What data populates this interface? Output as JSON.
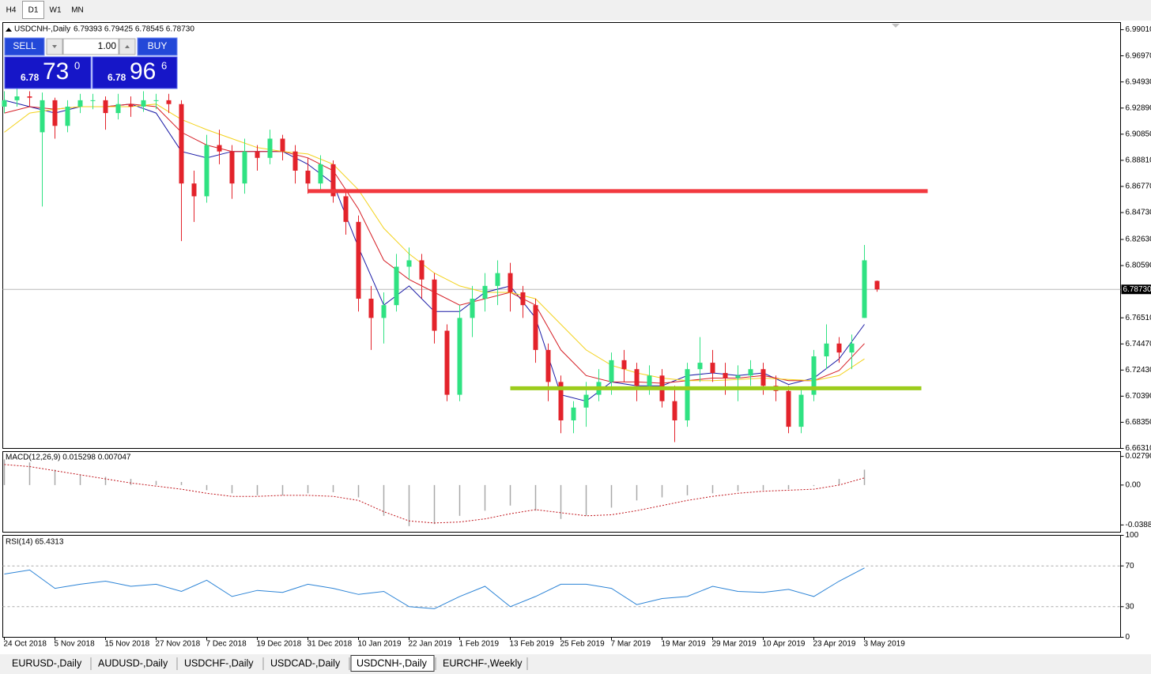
{
  "top_tabs": [
    "H4",
    "D1",
    "W1",
    "MN"
  ],
  "active_top_tab": 1,
  "trade_panel": {
    "sell": "SELL",
    "buy": "BUY",
    "lot": "1.00",
    "sell_big": "6.78",
    "sell_pips": "73",
    "sell_frac": "0",
    "buy_big": "6.78",
    "buy_pips": "96",
    "buy_frac": "6"
  },
  "chart_data": [
    {
      "type": "candlestick",
      "title": "USDCNH-,Daily",
      "ohlc": "6.79393 6.79425 6.78545 6.78730",
      "up_color": "#2fe282",
      "down_color": "#e3232b",
      "xlim": [
        -0.25,
        176.5
      ],
      "xticks": [
        {
          "value": 0,
          "label": "24 Oct 2018"
        },
        {
          "value": 8,
          "label": "5 Nov 2018"
        },
        {
          "value": 16,
          "label": "15 Nov 2018"
        },
        {
          "value": 24,
          "label": "27 Nov 2018"
        },
        {
          "value": 32,
          "label": "7 Dec 2018"
        },
        {
          "value": 40,
          "label": "19 Dec 2018"
        },
        {
          "value": 48,
          "label": "31 Dec 2018"
        },
        {
          "value": 56,
          "label": "10 Jan 2019"
        },
        {
          "value": 64,
          "label": "22 Jan 2019"
        },
        {
          "value": 72,
          "label": "1 Feb 2019"
        },
        {
          "value": 80,
          "label": "13 Feb 2019"
        },
        {
          "value": 88,
          "label": "25 Feb 2019"
        },
        {
          "value": 96,
          "label": "7 Mar 2019"
        },
        {
          "value": 104,
          "label": "19 Mar 2019"
        },
        {
          "value": 112,
          "label": "29 Mar 2019"
        },
        {
          "value": 120,
          "label": "10 Apr 2019"
        },
        {
          "value": 128,
          "label": "23 Apr 2019"
        },
        {
          "value": 136,
          "label": "3 May 2019"
        }
      ],
      "ylim": [
        6.6631,
        6.9957
      ],
      "yticks": [
        {
          "value": 6.9901,
          "label": "6.99010"
        },
        {
          "value": 6.9697,
          "label": "6.96970"
        },
        {
          "value": 6.9493,
          "label": "6.94930"
        },
        {
          "value": 6.9289,
          "label": "6.92890"
        },
        {
          "value": 6.9085,
          "label": "6.90850"
        },
        {
          "value": 6.8881,
          "label": "6.88810"
        },
        {
          "value": 6.8677,
          "label": "6.86770"
        },
        {
          "value": 6.8473,
          "label": "6.84730"
        },
        {
          "value": 6.8263,
          "label": "6.82630"
        },
        {
          "value": 6.8059,
          "label": "6.80590"
        },
        {
          "value": 6.7651,
          "label": "6.76510"
        },
        {
          "value": 6.7447,
          "label": "6.74470"
        },
        {
          "value": 6.7243,
          "label": "6.72430"
        },
        {
          "value": 6.7039,
          "label": "6.70390"
        },
        {
          "value": 6.6835,
          "label": "6.68350"
        },
        {
          "value": 6.6631,
          "label": "6.66310"
        }
      ],
      "bid": {
        "value": 6.7873,
        "label": "6.78730"
      },
      "x": [
        0,
        2,
        4,
        6,
        8,
        10,
        12,
        14,
        16,
        18,
        20,
        22,
        24,
        26,
        28,
        30,
        32,
        34,
        36,
        38,
        40,
        42,
        44,
        46,
        48,
        50,
        52,
        54,
        56,
        58,
        60,
        62,
        64,
        66,
        68,
        70,
        72,
        74,
        76,
        78,
        80,
        82,
        84,
        86,
        88,
        90,
        92,
        94,
        96,
        98,
        100,
        102,
        104,
        106,
        108,
        110,
        112,
        114,
        116,
        118,
        120,
        122,
        124,
        126,
        128,
        130,
        132,
        134,
        136,
        138
      ],
      "candles": [
        [
          6.93,
          6.942,
          6.925,
          6.935
        ],
        [
          6.935,
          6.944,
          6.93,
          6.938
        ],
        [
          6.938,
          6.942,
          6.93,
          6.937
        ],
        [
          6.91,
          6.941,
          6.852,
          6.935
        ],
        [
          6.935,
          6.937,
          6.905,
          6.915
        ],
        [
          6.915,
          6.935,
          6.91,
          6.93
        ],
        [
          6.93,
          6.94,
          6.925,
          6.935
        ],
        [
          6.935,
          6.94,
          6.928,
          6.935
        ],
        [
          6.935,
          6.938,
          6.912,
          6.925
        ],
        [
          6.925,
          6.94,
          6.92,
          6.932
        ],
        [
          6.932,
          6.938,
          6.922,
          6.93
        ],
        [
          6.93,
          6.942,
          6.926,
          6.935
        ],
        [
          6.935,
          6.94,
          6.928,
          6.935
        ],
        [
          6.935,
          6.94,
          6.925,
          6.932
        ],
        [
          6.932,
          6.935,
          6.825,
          6.87
        ],
        [
          6.87,
          6.88,
          6.84,
          6.86
        ],
        [
          6.86,
          6.908,
          6.855,
          6.9
        ],
        [
          6.9,
          6.912,
          6.885,
          6.895
        ],
        [
          6.895,
          6.9,
          6.858,
          6.87
        ],
        [
          6.87,
          6.905,
          6.862,
          6.895
        ],
        [
          6.895,
          6.9,
          6.88,
          6.89
        ],
        [
          6.89,
          6.912,
          6.885,
          6.905
        ],
        [
          6.905,
          6.908,
          6.888,
          6.895
        ],
        [
          6.895,
          6.9,
          6.87,
          6.88
        ],
        [
          6.88,
          6.89,
          6.862,
          6.87
        ],
        [
          6.87,
          6.892,
          6.865,
          6.885
        ],
        [
          6.885,
          6.888,
          6.855,
          6.86
        ],
        [
          6.86,
          6.865,
          6.83,
          6.84
        ],
        [
          6.84,
          6.845,
          6.77,
          6.78
        ],
        [
          6.78,
          6.79,
          6.74,
          6.765
        ],
        [
          6.765,
          6.785,
          6.745,
          6.775
        ],
        [
          6.775,
          6.815,
          6.77,
          6.805
        ],
        [
          6.805,
          6.82,
          6.795,
          6.81
        ],
        [
          6.81,
          6.815,
          6.78,
          6.795
        ],
        [
          6.795,
          6.8,
          6.745,
          6.755
        ],
        [
          6.755,
          6.76,
          6.7,
          6.705
        ],
        [
          6.705,
          6.775,
          6.7,
          6.765
        ],
        [
          6.765,
          6.79,
          6.75,
          6.78
        ],
        [
          6.78,
          6.8,
          6.77,
          6.79
        ],
        [
          6.79,
          6.81,
          6.775,
          6.8
        ],
        [
          6.8,
          6.808,
          6.77,
          6.785
        ],
        [
          6.785,
          6.79,
          6.765,
          6.775
        ],
        [
          6.775,
          6.78,
          6.73,
          6.74
        ],
        [
          6.74,
          6.745,
          6.7,
          6.715
        ],
        [
          6.715,
          6.72,
          6.675,
          6.685
        ],
        [
          6.685,
          6.7,
          6.675,
          6.695
        ],
        [
          6.695,
          6.715,
          6.68,
          6.705
        ],
        [
          6.705,
          6.725,
          6.7,
          6.715
        ],
        [
          6.715,
          6.738,
          6.705,
          6.732
        ],
        [
          6.732,
          6.74,
          6.715,
          6.725
        ],
        [
          6.725,
          6.73,
          6.7,
          6.712
        ],
        [
          6.712,
          6.728,
          6.705,
          6.72
        ],
        [
          6.72,
          6.725,
          6.695,
          6.7
        ],
        [
          6.7,
          6.712,
          6.668,
          6.685
        ],
        [
          6.685,
          6.73,
          6.68,
          6.725
        ],
        [
          6.725,
          6.75,
          6.715,
          6.73
        ],
        [
          6.73,
          6.74,
          6.715,
          6.722
        ],
        [
          6.722,
          6.73,
          6.705,
          6.718
        ],
        [
          6.718,
          6.728,
          6.7,
          6.72
        ],
        [
          6.72,
          6.732,
          6.712,
          6.725
        ],
        [
          6.725,
          6.73,
          6.705,
          6.712
        ],
        [
          6.712,
          6.72,
          6.7,
          6.708
        ],
        [
          6.708,
          6.712,
          6.675,
          6.68
        ],
        [
          6.68,
          6.71,
          6.675,
          6.705
        ],
        [
          6.705,
          6.74,
          6.7,
          6.735
        ],
        [
          6.735,
          6.76,
          6.725,
          6.745
        ],
        [
          6.745,
          6.75,
          6.73,
          6.738
        ],
        [
          6.738,
          6.752,
          6.725,
          6.745
        ],
        [
          6.765,
          6.822,
          6.765,
          6.81
        ],
        [
          6.79393,
          6.79425,
          6.78545,
          6.7873
        ]
      ],
      "moving_averages": [
        {
          "color": "#1a1aa6",
          "x": [
            0,
            4,
            8,
            12,
            16,
            20,
            24,
            28,
            32,
            36,
            40,
            44,
            48,
            52,
            56,
            60,
            64,
            68,
            72,
            76,
            80,
            84,
            88,
            92,
            96,
            100,
            104,
            108,
            112,
            116,
            120,
            124,
            128,
            132,
            136
          ],
          "values": [
            6.935,
            6.93,
            6.925,
            6.93,
            6.93,
            6.932,
            6.925,
            6.895,
            6.89,
            6.895,
            6.895,
            6.895,
            6.885,
            6.87,
            6.82,
            6.775,
            6.79,
            6.77,
            6.77,
            6.785,
            6.79,
            6.765,
            6.705,
            6.7,
            6.715,
            6.712,
            6.712,
            6.72,
            6.722,
            6.72,
            6.722,
            6.713,
            6.718,
            6.733,
            6.76
          ]
        },
        {
          "color": "#d61f26",
          "x": [
            0,
            4,
            8,
            12,
            16,
            20,
            24,
            28,
            32,
            36,
            40,
            44,
            48,
            52,
            56,
            60,
            64,
            68,
            72,
            76,
            80,
            84,
            88,
            92,
            96,
            100,
            104,
            108,
            112,
            116,
            120,
            124,
            128,
            132,
            136
          ],
          "values": [
            6.925,
            6.93,
            6.928,
            6.93,
            6.93,
            6.932,
            6.93,
            6.91,
            6.9,
            6.895,
            6.895,
            6.895,
            6.89,
            6.88,
            6.85,
            6.81,
            6.795,
            6.785,
            6.775,
            6.78,
            6.785,
            6.775,
            6.74,
            6.72,
            6.715,
            6.715,
            6.714,
            6.716,
            6.718,
            6.718,
            6.72,
            6.716,
            6.716,
            6.724,
            6.745
          ]
        },
        {
          "color": "#f3d21c",
          "x": [
            0,
            4,
            8,
            12,
            16,
            20,
            24,
            28,
            32,
            36,
            40,
            44,
            48,
            52,
            56,
            60,
            64,
            68,
            72,
            76,
            80,
            84,
            88,
            92,
            96,
            100,
            104,
            108,
            112,
            116,
            120,
            124,
            128,
            132,
            136
          ],
          "values": [
            6.91,
            6.925,
            6.928,
            6.93,
            6.93,
            6.93,
            6.932,
            6.92,
            6.912,
            6.905,
            6.898,
            6.895,
            6.893,
            6.885,
            6.865,
            6.835,
            6.815,
            6.8,
            6.79,
            6.785,
            6.785,
            6.78,
            6.76,
            6.74,
            6.728,
            6.722,
            6.718,
            6.716,
            6.716,
            6.717,
            6.718,
            6.717,
            6.716,
            6.72,
            6.733
          ]
        }
      ],
      "hlines": [
        {
          "value": 6.864,
          "from": 48,
          "to": 146,
          "color": "#f2393f"
        },
        {
          "value": 6.7101,
          "from": 80,
          "to": 145,
          "color": "#9ccc1c"
        }
      ]
    },
    {
      "type": "macd",
      "title": "MACD(12,26,9) 0.015298 0.007047",
      "ylim": [
        -0.0459,
        0.0326
      ],
      "yticks": [
        {
          "value": 0.0279,
          "label": "0.02790"
        },
        {
          "value": 0,
          "label": "0.00"
        },
        {
          "value": -0.03887,
          "label": "-0.03887"
        }
      ],
      "x": [
        0,
        4,
        8,
        12,
        16,
        20,
        24,
        28,
        32,
        36,
        40,
        44,
        48,
        52,
        56,
        60,
        64,
        68,
        72,
        76,
        80,
        84,
        88,
        92,
        96,
        100,
        104,
        108,
        112,
        116,
        120,
        124,
        128,
        132,
        136
      ],
      "histogram": [
        0.025,
        0.022,
        0.015,
        0.01,
        0.008,
        0.006,
        0.004,
        0.003,
        -0.005,
        -0.008,
        -0.01,
        -0.01,
        -0.008,
        -0.007,
        -0.012,
        -0.03,
        -0.04,
        -0.038,
        -0.03,
        -0.025,
        -0.02,
        -0.025,
        -0.033,
        -0.03,
        -0.022,
        -0.015,
        -0.012,
        -0.01,
        -0.008,
        -0.006,
        -0.005,
        -0.004,
        -0.001,
        0.006,
        0.015
      ],
      "histogram_color": "#a8a8a8",
      "signal": [
        0.02,
        0.018,
        0.014,
        0.01,
        0.006,
        0.002,
        -0.001,
        -0.004,
        -0.008,
        -0.011,
        -0.011,
        -0.01,
        -0.01,
        -0.011,
        -0.015,
        -0.026,
        -0.035,
        -0.037,
        -0.036,
        -0.033,
        -0.028,
        -0.024,
        -0.027,
        -0.03,
        -0.029,
        -0.025,
        -0.02,
        -0.015,
        -0.011,
        -0.008,
        -0.006,
        -0.005,
        -0.004,
        0.0,
        0.007
      ],
      "signal_color": "#c0141b"
    },
    {
      "type": "line",
      "title": "RSI(14) 65.4313",
      "ylim": [
        0,
        100
      ],
      "yticks": [
        100,
        70,
        30,
        0
      ],
      "levels": [
        70,
        30
      ],
      "color": "#2b83d6",
      "x": [
        0,
        4,
        8,
        12,
        16,
        20,
        24,
        28,
        32,
        36,
        40,
        44,
        48,
        52,
        56,
        60,
        64,
        68,
        72,
        76,
        80,
        84,
        88,
        92,
        96,
        100,
        104,
        108,
        112,
        116,
        120,
        124,
        128,
        132,
        136
      ],
      "values": [
        62,
        66,
        48,
        52,
        55,
        50,
        52,
        45,
        56,
        40,
        46,
        44,
        52,
        48,
        42,
        45,
        30,
        28,
        40,
        50,
        30,
        40,
        52,
        52,
        48,
        32,
        38,
        40,
        50,
        45,
        44,
        47,
        40,
        55,
        68
      ]
    }
  ],
  "bottom_tabs": [
    "EURUSD-,Daily",
    "AUDUSD-,Daily",
    "USDCHF-,Daily",
    "USDCAD-,Daily",
    "USDCNH-,Daily",
    "EURCHF-,Weekly"
  ],
  "active_bottom_tab": 4
}
